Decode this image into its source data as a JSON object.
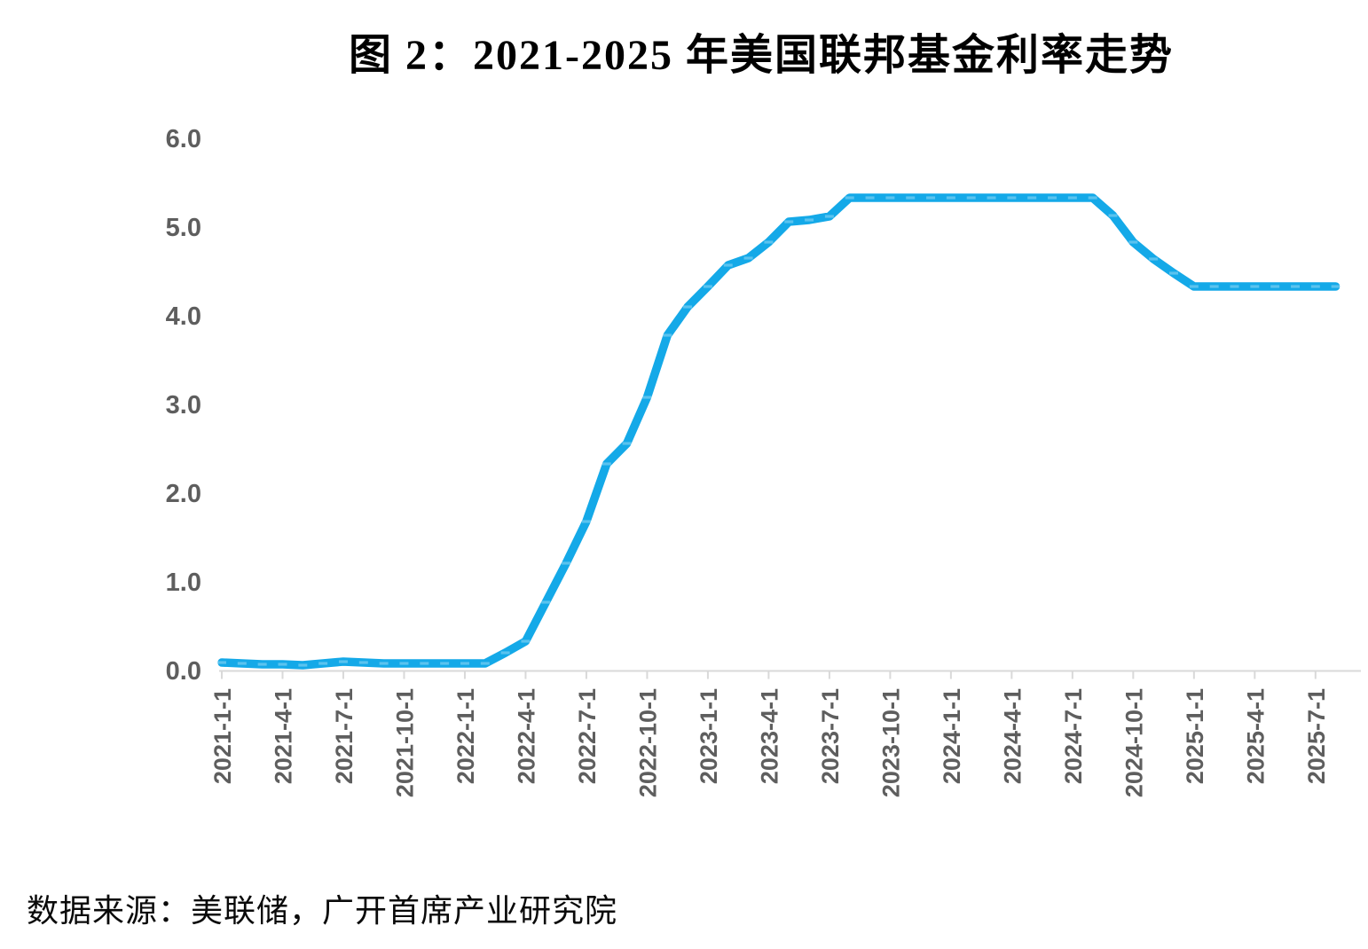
{
  "figure": {
    "title": "图 2：2021-2025 年美国联邦基金利率走势",
    "source_note": "数据来源：美联储，广开首席产业研究院"
  },
  "chart_data": {
    "type": "line",
    "title": "图 2：2021-2025 年美国联邦基金利率走势",
    "xlabel": "",
    "ylabel": "",
    "ylim": [
      0.0,
      6.0
    ],
    "y_tick_labels": [
      "0.0",
      "1.0",
      "2.0",
      "3.0",
      "4.0",
      "5.0",
      "6.0"
    ],
    "x_tick_labels": [
      "2021-1-1",
      "2021-4-1",
      "2021-7-1",
      "2021-10-1",
      "2022-1-1",
      "2022-4-1",
      "2022-7-1",
      "2022-10-1",
      "2023-1-1",
      "2023-4-1",
      "2023-7-1",
      "2023-10-1",
      "2024-1-1",
      "2024-4-1",
      "2024-7-1",
      "2024-10-1",
      "2025-1-1",
      "2025-4-1",
      "2025-7-1"
    ],
    "grid": false,
    "legend": "none",
    "x": [
      "2021-1",
      "2021-2",
      "2021-3",
      "2021-4",
      "2021-5",
      "2021-6",
      "2021-7",
      "2021-8",
      "2021-9",
      "2021-10",
      "2021-11",
      "2021-12",
      "2022-1",
      "2022-2",
      "2022-3",
      "2022-4",
      "2022-5",
      "2022-6",
      "2022-7",
      "2022-8",
      "2022-9",
      "2022-10",
      "2022-11",
      "2022-12",
      "2023-1",
      "2023-2",
      "2023-3",
      "2023-4",
      "2023-5",
      "2023-6",
      "2023-7",
      "2023-8",
      "2023-9",
      "2023-10",
      "2023-11",
      "2023-12",
      "2024-1",
      "2024-2",
      "2024-3",
      "2024-4",
      "2024-5",
      "2024-6",
      "2024-7",
      "2024-8",
      "2024-9",
      "2024-10",
      "2024-11",
      "2024-12",
      "2025-1",
      "2025-2",
      "2025-3",
      "2025-4",
      "2025-5",
      "2025-6",
      "2025-7",
      "2025-8"
    ],
    "values": [
      0.09,
      0.08,
      0.07,
      0.07,
      0.06,
      0.08,
      0.1,
      0.09,
      0.08,
      0.08,
      0.08,
      0.08,
      0.08,
      0.08,
      0.2,
      0.33,
      0.77,
      1.21,
      1.68,
      2.33,
      2.56,
      3.08,
      3.78,
      4.1,
      4.33,
      4.57,
      4.65,
      4.83,
      5.06,
      5.08,
      5.12,
      5.33,
      5.33,
      5.33,
      5.33,
      5.33,
      5.33,
      5.33,
      5.33,
      5.33,
      5.33,
      5.33,
      5.33,
      5.33,
      5.13,
      4.83,
      4.64,
      4.48,
      4.33,
      4.33,
      4.33,
      4.33,
      4.33,
      4.33,
      4.33,
      4.33
    ],
    "colors": {
      "line": "#14A9E8",
      "axis": "#D9D9D9",
      "tick_label": "#5E5E5E",
      "title": "#000000"
    }
  }
}
